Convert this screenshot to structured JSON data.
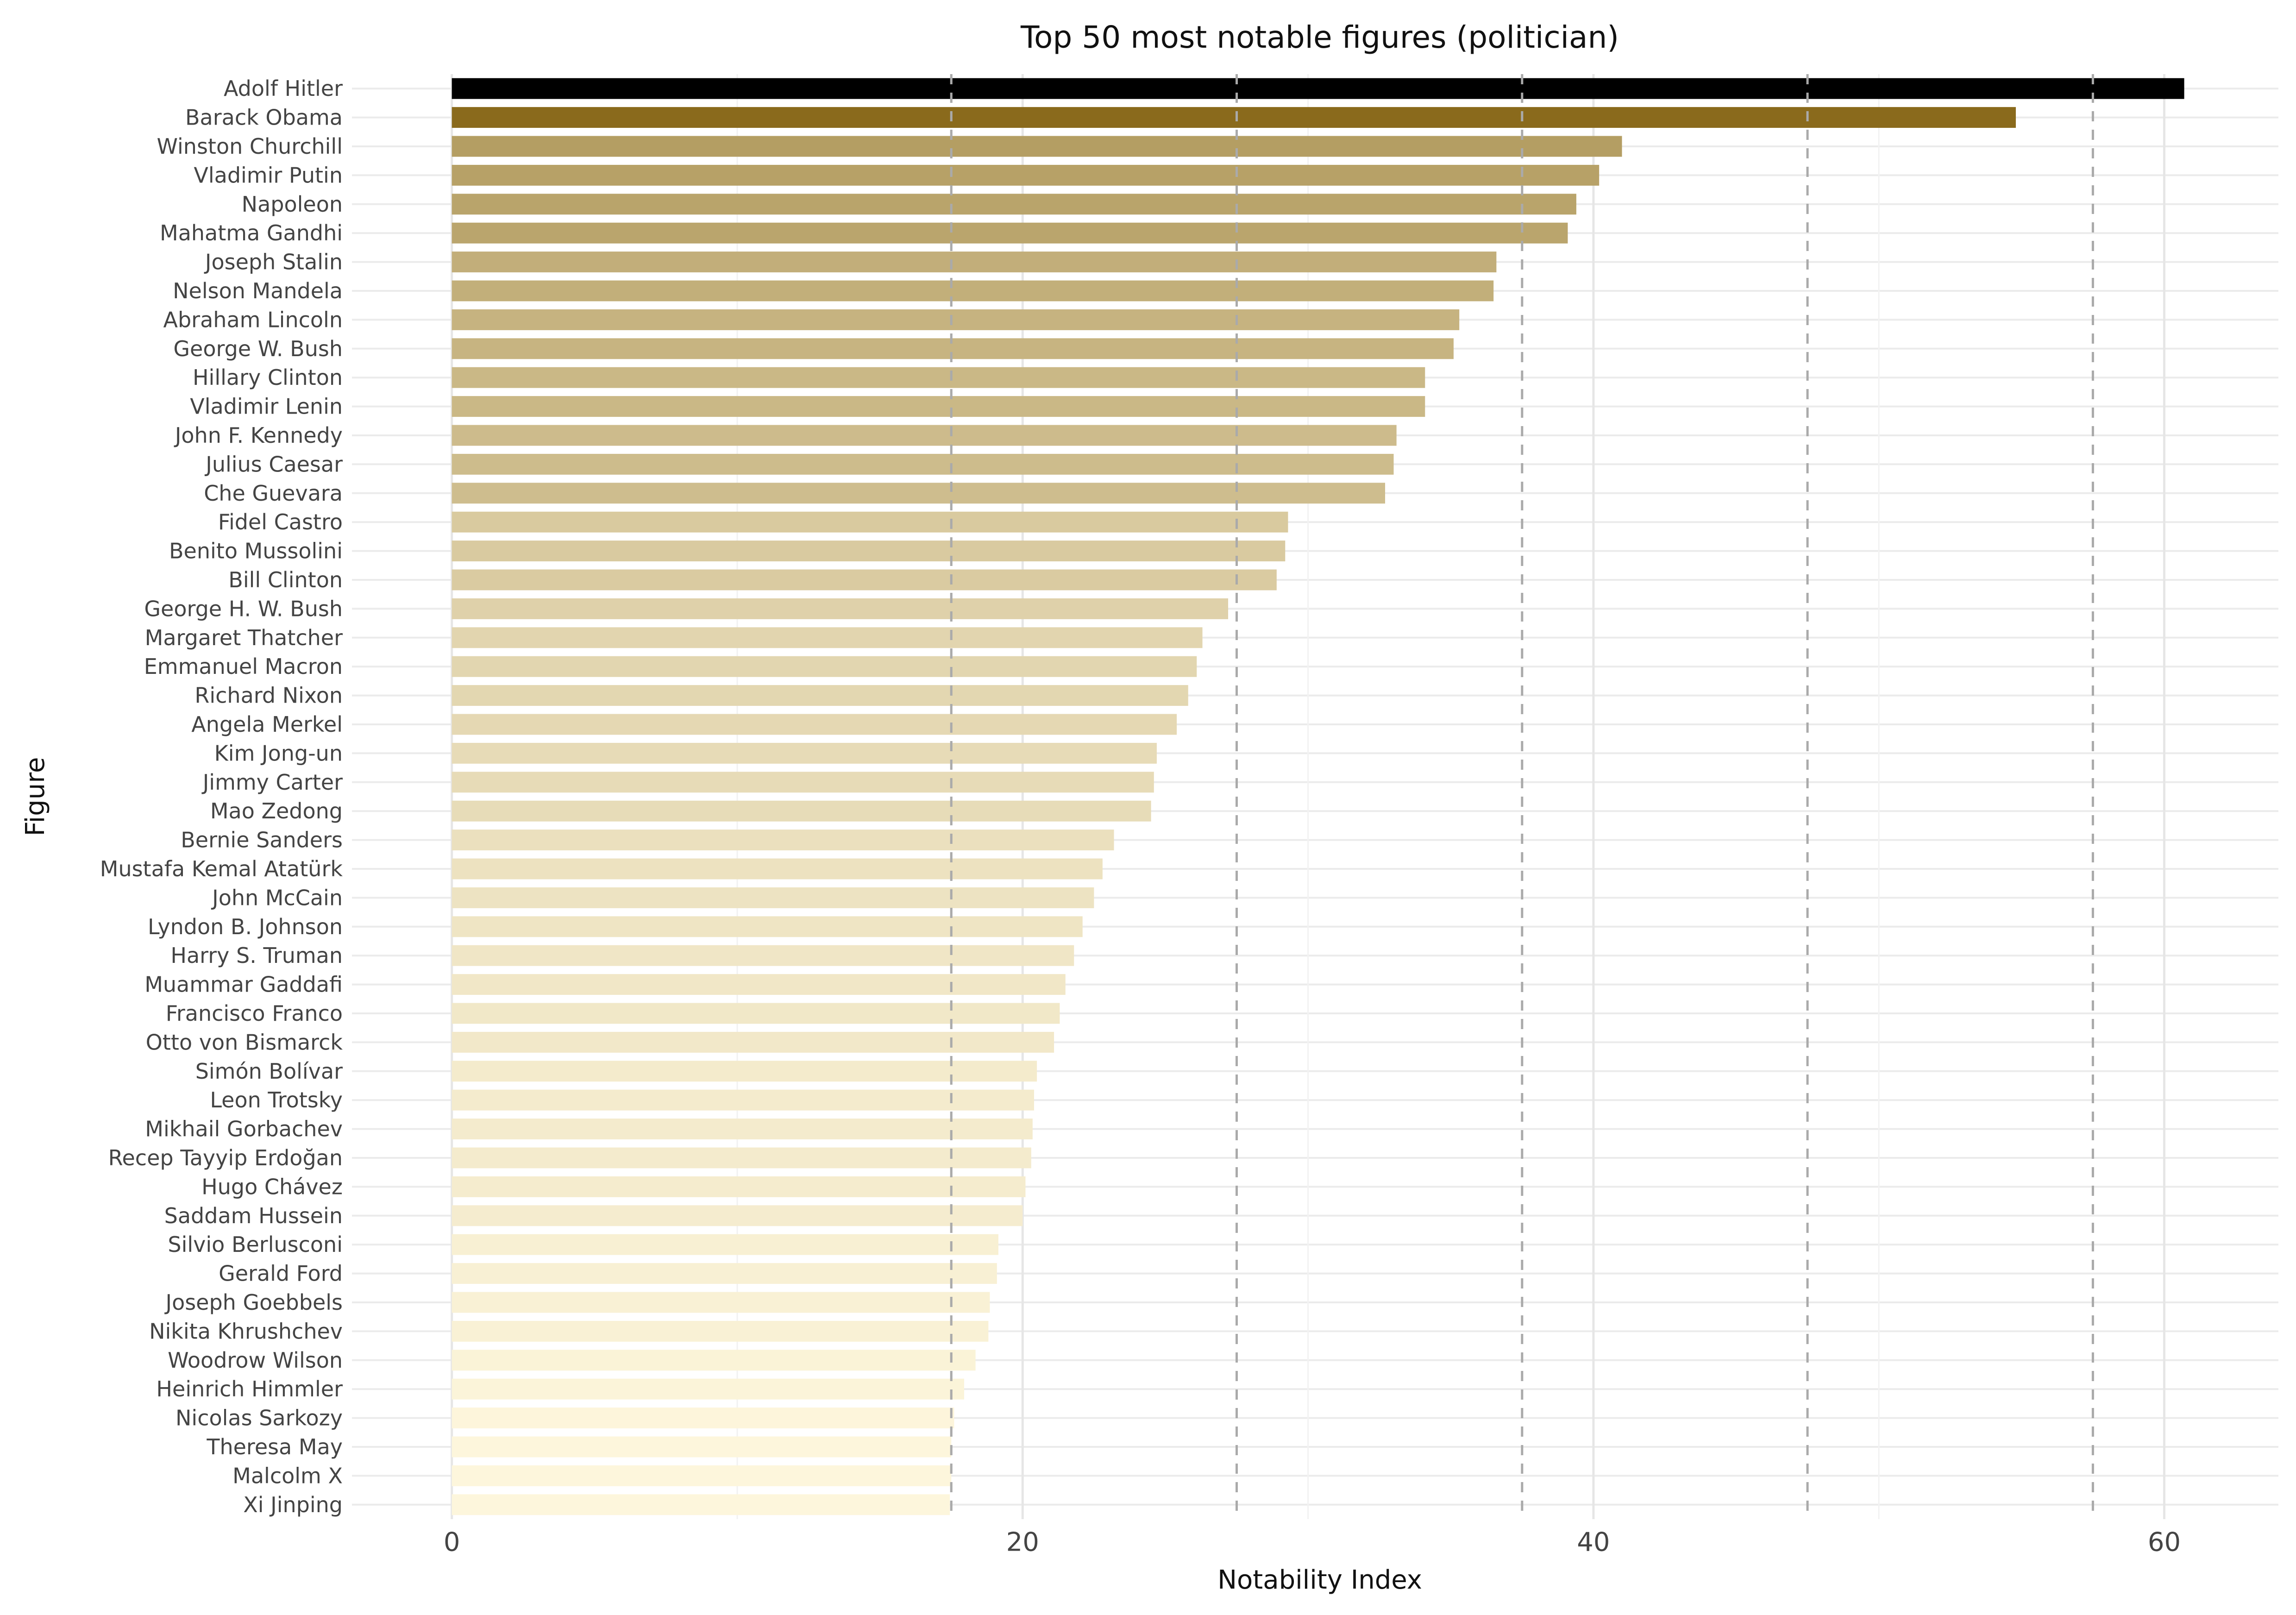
{
  "chart_data": {
    "type": "bar",
    "orientation": "horizontal",
    "title": "Top 50 most notable figures (politician)",
    "xlabel": "Notability Index",
    "ylabel": "Figure",
    "xlim": [
      -3.5,
      64
    ],
    "xticks": [
      0,
      20,
      40,
      60
    ],
    "grid": true,
    "reference_lines_dashed": [
      17.5,
      27.5,
      37.5,
      47.5,
      57.5
    ],
    "color_scale": {
      "low": "#fdf6dc",
      "high": "#8a6a1c",
      "top": "#000000"
    },
    "categories": [
      "Adolf Hitler",
      "Barack Obama",
      "Winston Churchill",
      "Vladimir Putin",
      "Napoleon",
      "Mahatma Gandhi",
      "Joseph Stalin",
      "Nelson Mandela",
      "Abraham Lincoln",
      "George W. Bush",
      "Hillary Clinton",
      "Vladimir Lenin",
      "John F. Kennedy",
      "Julius Caesar",
      "Che Guevara",
      "Fidel Castro",
      "Benito Mussolini",
      "Bill Clinton",
      "George H. W. Bush",
      "Margaret Thatcher",
      "Emmanuel Macron",
      "Richard Nixon",
      "Angela Merkel",
      "Kim Jong-un",
      "Jimmy Carter",
      "Mao Zedong",
      "Bernie Sanders",
      "Mustafa Kemal Atatürk",
      "John McCain",
      "Lyndon B. Johnson",
      "Harry S. Truman",
      "Muammar Gaddafi",
      "Francisco Franco",
      "Otto von Bismarck",
      "Simón Bolívar",
      "Leon Trotsky",
      "Mikhail Gorbachev",
      "Recep Tayyip Erdoğan",
      "Hugo Chávez",
      "Saddam Hussein",
      "Silvio Berlusconi",
      "Gerald Ford",
      "Joseph Goebbels",
      "Nikita Khrushchev",
      "Woodrow Wilson",
      "Heinrich Himmler",
      "Nicolas Sarkozy",
      "Theresa May",
      "Malcolm X",
      "Xi Jinping"
    ],
    "values": [
      60.7,
      54.8,
      41.0,
      40.2,
      39.4,
      39.1,
      36.6,
      36.5,
      35.3,
      35.1,
      34.1,
      34.1,
      33.1,
      33.0,
      32.7,
      29.3,
      29.2,
      28.9,
      27.2,
      26.3,
      26.1,
      25.8,
      25.4,
      24.7,
      24.6,
      24.5,
      23.2,
      22.8,
      22.5,
      22.1,
      21.8,
      21.5,
      21.3,
      21.1,
      20.5,
      20.4,
      20.35,
      20.3,
      20.1,
      20.0,
      19.15,
      19.1,
      18.85,
      18.8,
      18.35,
      17.95,
      17.6,
      17.5,
      17.5,
      17.45
    ]
  }
}
